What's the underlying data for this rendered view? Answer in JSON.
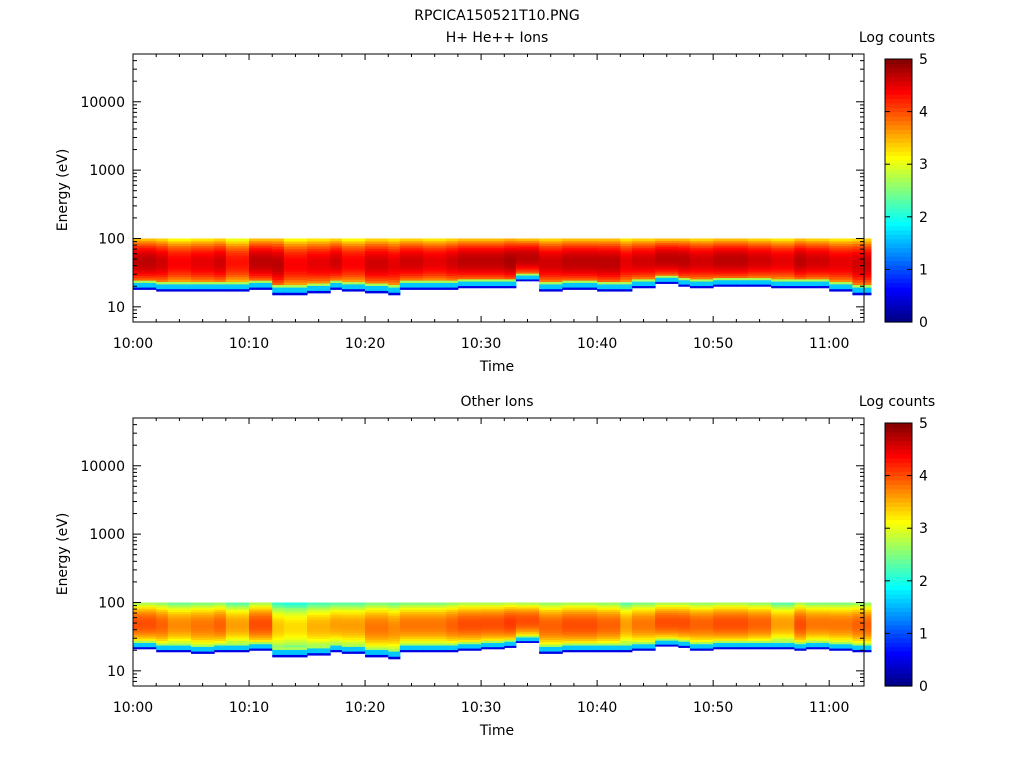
{
  "figure": {
    "title": "RPCICA150521T10.PNG"
  },
  "colormap": {
    "name": "jet",
    "stops": [
      "#00007f",
      "#0000ff",
      "#007fff",
      "#00ffff",
      "#7fff7f",
      "#ffff00",
      "#ff7f00",
      "#ff0000",
      "#7f0000"
    ]
  },
  "chart_data": [
    {
      "type": "heatmap",
      "title": "H+ He++ Ions",
      "xlabel": "Time",
      "ylabel": "Energy (eV)",
      "yscale": "log",
      "ylim": [
        6,
        50000
      ],
      "yticks": [
        10,
        100,
        1000,
        10000
      ],
      "ytick_labels": [
        "10",
        "100",
        "1000",
        "10000"
      ],
      "xlim": [
        "10:00",
        "11:03"
      ],
      "xticks": [
        "10:00",
        "10:10",
        "10:20",
        "10:30",
        "10:40",
        "10:50",
        "11:00"
      ],
      "colorbar": {
        "label": "Log counts",
        "range": [
          0,
          5
        ],
        "ticks": [
          "0",
          "1",
          "2",
          "3",
          "4",
          "5"
        ]
      },
      "energy_range_eV": [
        10,
        100
      ],
      "columns": [
        {
          "t": "10:00",
          "low_eV": 18,
          "peak": 4.7
        },
        {
          "t": "10:02",
          "low_eV": 17,
          "peak": 4.6
        },
        {
          "t": "10:03",
          "low_eV": 17,
          "peak": 4.4
        },
        {
          "t": "10:05",
          "low_eV": 17,
          "peak": 4.5
        },
        {
          "t": "10:07",
          "low_eV": 17,
          "peak": 4.6
        },
        {
          "t": "10:08",
          "low_eV": 17,
          "peak": 4.3
        },
        {
          "t": "10:10",
          "low_eV": 18,
          "peak": 4.7
        },
        {
          "t": "10:12",
          "low_eV": 15,
          "peak": 4.7
        },
        {
          "t": "10:13",
          "low_eV": 15,
          "peak": 4.4
        },
        {
          "t": "10:15",
          "low_eV": 16,
          "peak": 4.5
        },
        {
          "t": "10:17",
          "low_eV": 18,
          "peak": 4.6
        },
        {
          "t": "10:18",
          "low_eV": 17,
          "peak": 4.4
        },
        {
          "t": "10:20",
          "low_eV": 16,
          "peak": 4.6
        },
        {
          "t": "10:22",
          "low_eV": 15,
          "peak": 4.5
        },
        {
          "t": "10:23",
          "low_eV": 18,
          "peak": 4.6
        },
        {
          "t": "10:25",
          "low_eV": 18,
          "peak": 4.5
        },
        {
          "t": "10:27",
          "low_eV": 18,
          "peak": 4.6
        },
        {
          "t": "10:28",
          "low_eV": 19,
          "peak": 4.7
        },
        {
          "t": "10:30",
          "low_eV": 19,
          "peak": 4.7
        },
        {
          "t": "10:32",
          "low_eV": 19,
          "peak": 4.8
        },
        {
          "t": "10:33",
          "low_eV": 24,
          "peak": 4.7
        },
        {
          "t": "10:35",
          "low_eV": 17,
          "peak": 4.6
        },
        {
          "t": "10:37",
          "low_eV": 18,
          "peak": 4.7
        },
        {
          "t": "10:38",
          "low_eV": 18,
          "peak": 4.7
        },
        {
          "t": "10:40",
          "low_eV": 17,
          "peak": 4.7
        },
        {
          "t": "10:42",
          "low_eV": 17,
          "peak": 4.5
        },
        {
          "t": "10:43",
          "low_eV": 19,
          "peak": 4.6
        },
        {
          "t": "10:45",
          "low_eV": 22,
          "peak": 4.7
        },
        {
          "t": "10:47",
          "low_eV": 20,
          "peak": 4.7
        },
        {
          "t": "10:48",
          "low_eV": 19,
          "peak": 4.6
        },
        {
          "t": "10:50",
          "low_eV": 20,
          "peak": 4.7
        },
        {
          "t": "10:52",
          "low_eV": 20,
          "peak": 4.7
        },
        {
          "t": "10:53",
          "low_eV": 20,
          "peak": 4.6
        },
        {
          "t": "10:55",
          "low_eV": 19,
          "peak": 4.5
        },
        {
          "t": "10:57",
          "low_eV": 19,
          "peak": 4.7
        },
        {
          "t": "10:58",
          "low_eV": 19,
          "peak": 4.6
        },
        {
          "t": "11:00",
          "low_eV": 17,
          "peak": 4.5
        },
        {
          "t": "11:02",
          "low_eV": 15,
          "peak": 4.6
        }
      ]
    },
    {
      "type": "heatmap",
      "title": "Other Ions",
      "xlabel": "Time",
      "ylabel": "Energy (eV)",
      "yscale": "log",
      "ylim": [
        6,
        50000
      ],
      "yticks": [
        10,
        100,
        1000,
        10000
      ],
      "ytick_labels": [
        "10",
        "100",
        "1000",
        "10000"
      ],
      "xlim": [
        "10:00",
        "11:03"
      ],
      "xticks": [
        "10:00",
        "10:10",
        "10:20",
        "10:30",
        "10:40",
        "10:50",
        "11:00"
      ],
      "colorbar": {
        "label": "Log counts",
        "range": [
          0,
          5
        ],
        "ticks": [
          "0",
          "1",
          "2",
          "3",
          "4",
          "5"
        ]
      },
      "energy_range_eV": [
        10,
        100
      ],
      "columns": [
        {
          "t": "10:00",
          "low_eV": 21,
          "peak": 4.0
        },
        {
          "t": "10:02",
          "low_eV": 19,
          "peak": 3.9
        },
        {
          "t": "10:03",
          "low_eV": 19,
          "peak": 3.7
        },
        {
          "t": "10:05",
          "low_eV": 18,
          "peak": 3.8
        },
        {
          "t": "10:07",
          "low_eV": 19,
          "peak": 3.9
        },
        {
          "t": "10:08",
          "low_eV": 19,
          "peak": 3.6
        },
        {
          "t": "10:10",
          "low_eV": 20,
          "peak": 4.0
        },
        {
          "t": "10:12",
          "low_eV": 16,
          "peak": 3.4
        },
        {
          "t": "10:13",
          "low_eV": 16,
          "peak": 3.3
        },
        {
          "t": "10:15",
          "low_eV": 17,
          "peak": 3.5
        },
        {
          "t": "10:17",
          "low_eV": 19,
          "peak": 3.6
        },
        {
          "t": "10:18",
          "low_eV": 18,
          "peak": 3.6
        },
        {
          "t": "10:20",
          "low_eV": 16,
          "peak": 3.8
        },
        {
          "t": "10:22",
          "low_eV": 15,
          "peak": 3.7
        },
        {
          "t": "10:23",
          "low_eV": 19,
          "peak": 3.8
        },
        {
          "t": "10:25",
          "low_eV": 19,
          "peak": 3.8
        },
        {
          "t": "10:27",
          "low_eV": 19,
          "peak": 3.9
        },
        {
          "t": "10:28",
          "low_eV": 20,
          "peak": 4.0
        },
        {
          "t": "10:30",
          "low_eV": 21,
          "peak": 4.0
        },
        {
          "t": "10:32",
          "low_eV": 22,
          "peak": 4.1
        },
        {
          "t": "10:33",
          "low_eV": 26,
          "peak": 4.0
        },
        {
          "t": "10:35",
          "low_eV": 18,
          "peak": 3.9
        },
        {
          "t": "10:37",
          "low_eV": 19,
          "peak": 4.0
        },
        {
          "t": "10:38",
          "low_eV": 19,
          "peak": 4.0
        },
        {
          "t": "10:40",
          "low_eV": 19,
          "peak": 3.9
        },
        {
          "t": "10:42",
          "low_eV": 19,
          "peak": 3.6
        },
        {
          "t": "10:43",
          "low_eV": 20,
          "peak": 3.8
        },
        {
          "t": "10:45",
          "low_eV": 23,
          "peak": 4.0
        },
        {
          "t": "10:47",
          "low_eV": 22,
          "peak": 4.0
        },
        {
          "t": "10:48",
          "low_eV": 20,
          "peak": 3.9
        },
        {
          "t": "10:50",
          "low_eV": 21,
          "peak": 4.0
        },
        {
          "t": "10:52",
          "low_eV": 21,
          "peak": 4.0
        },
        {
          "t": "10:53",
          "low_eV": 21,
          "peak": 3.9
        },
        {
          "t": "10:55",
          "low_eV": 21,
          "peak": 3.6
        },
        {
          "t": "10:57",
          "low_eV": 20,
          "peak": 4.0
        },
        {
          "t": "10:58",
          "low_eV": 21,
          "peak": 3.8
        },
        {
          "t": "11:00",
          "low_eV": 20,
          "peak": 3.8
        },
        {
          "t": "11:02",
          "low_eV": 19,
          "peak": 3.9
        }
      ]
    }
  ]
}
